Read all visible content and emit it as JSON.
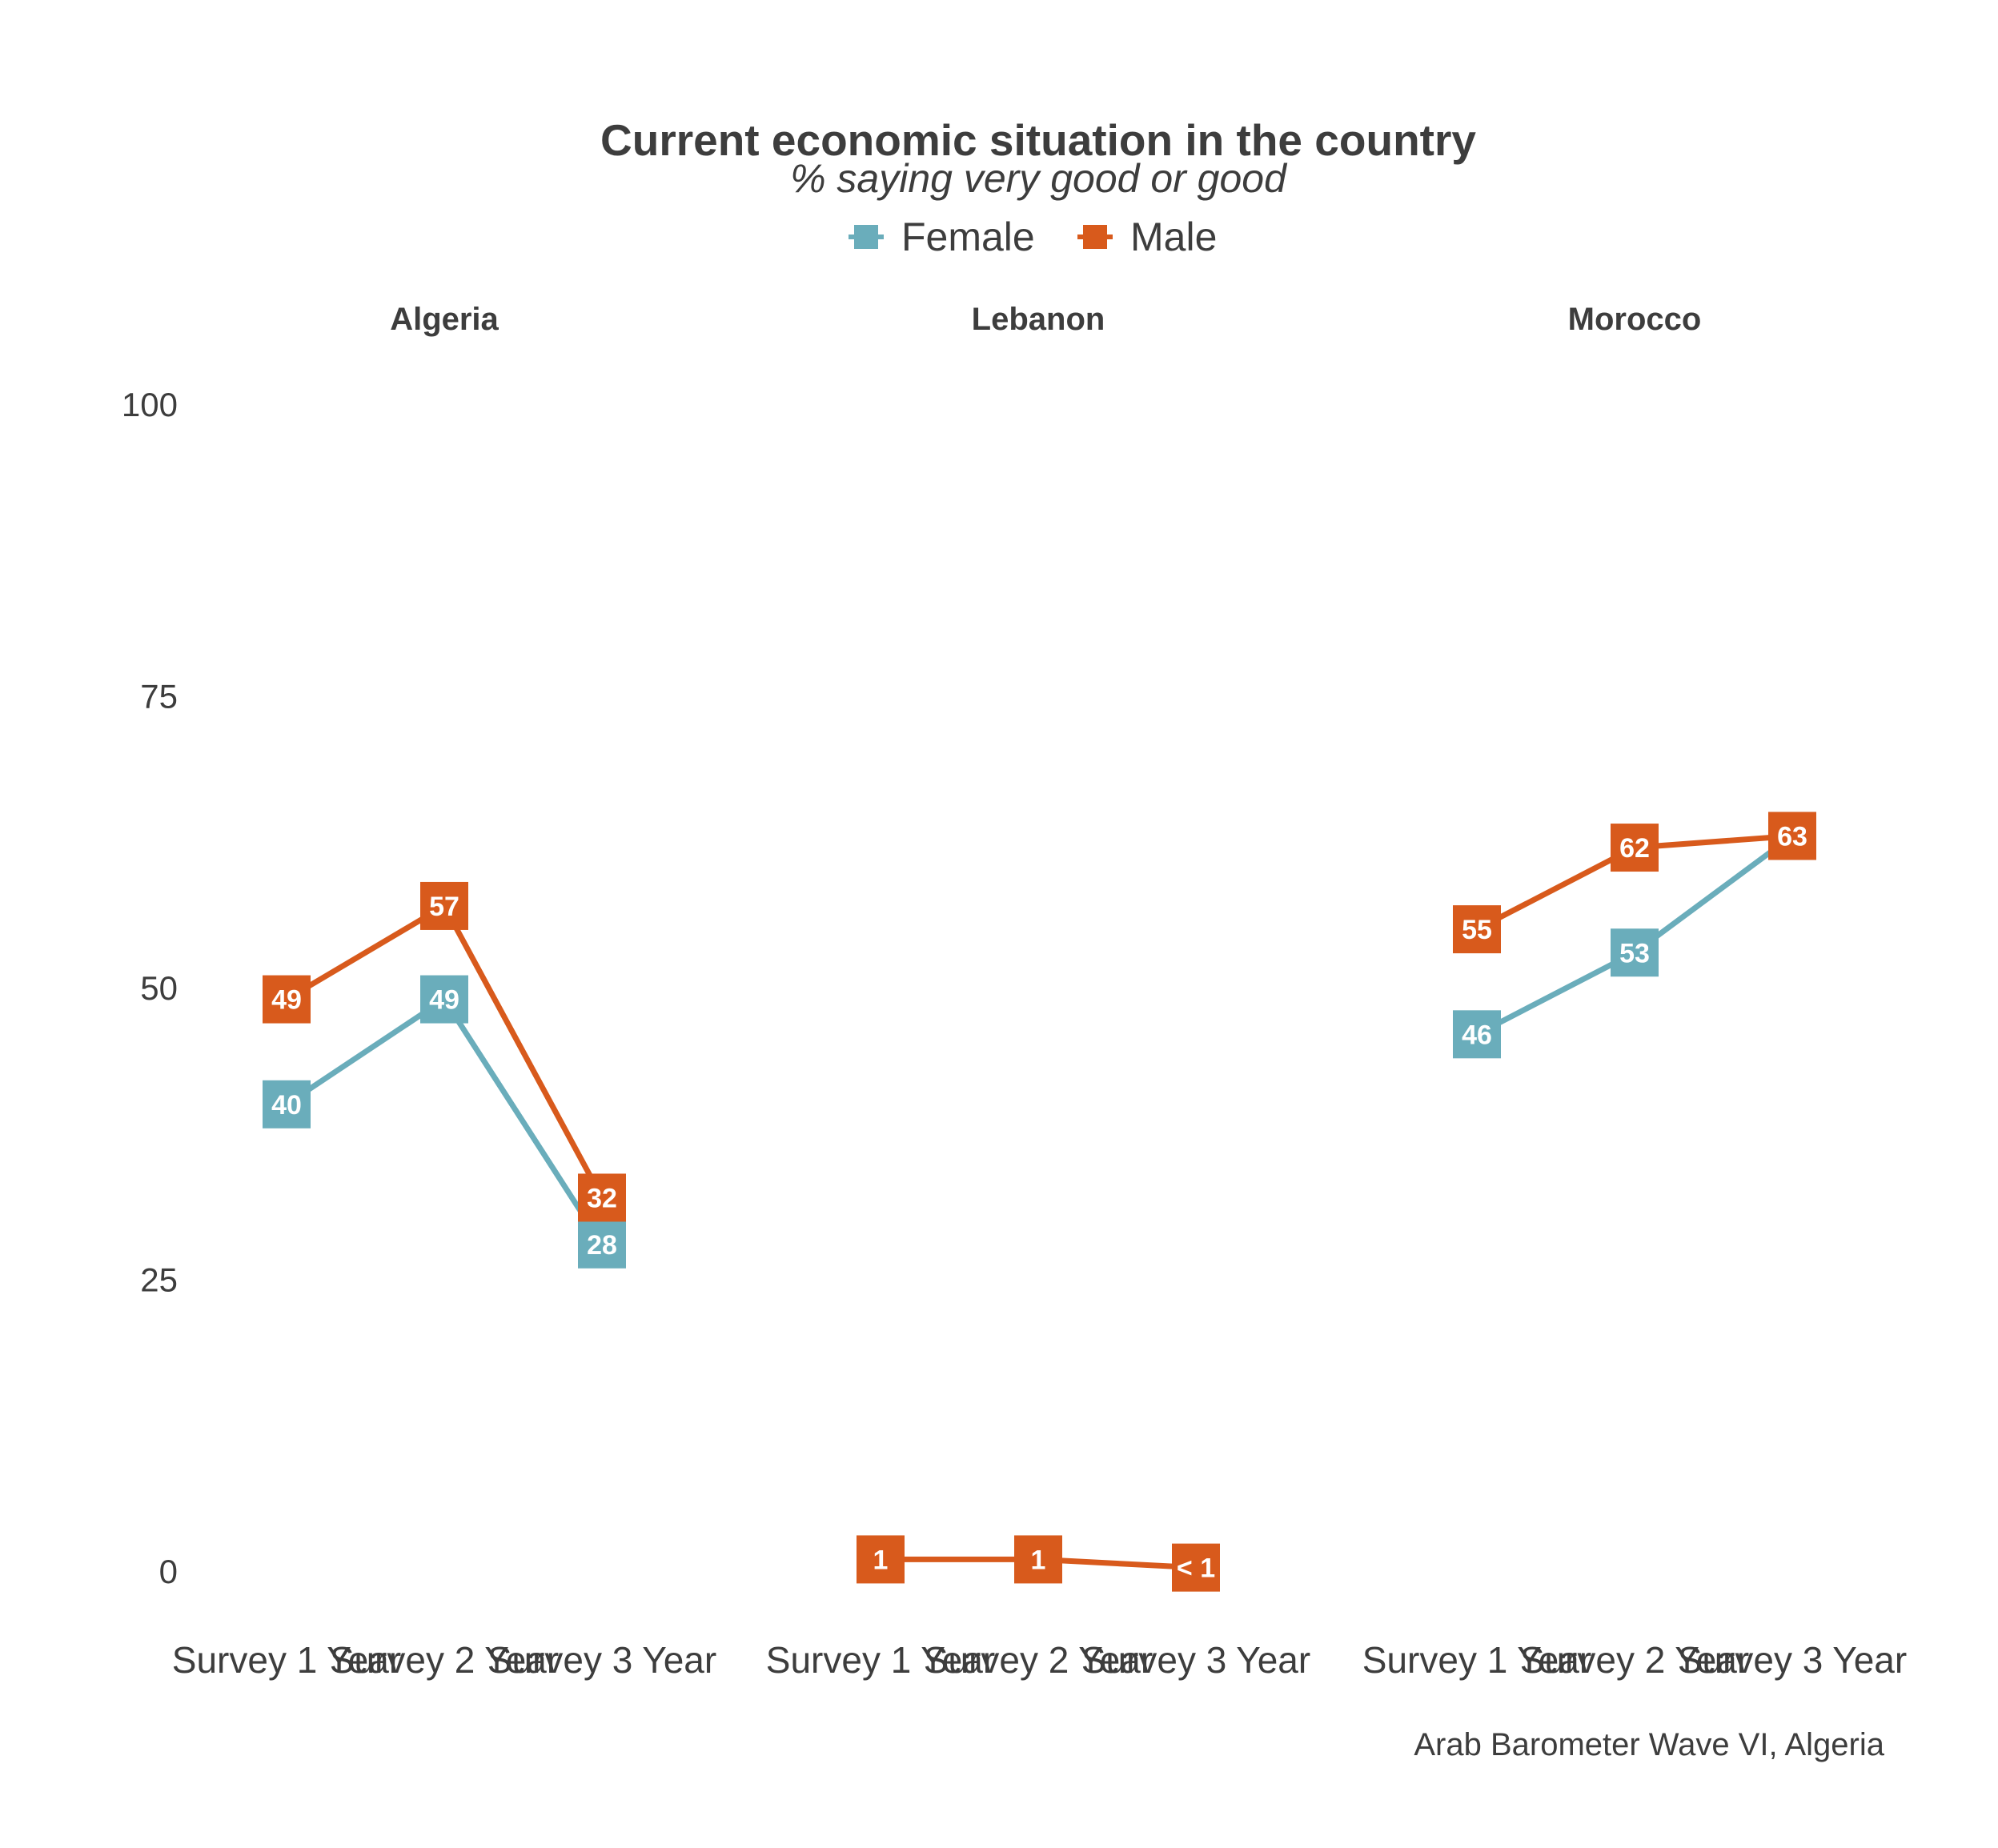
{
  "chart_data": {
    "type": "line",
    "title": "Current economic situation in the country",
    "subtitle": "% saying very good or good",
    "caption": "Arab Barometer Wave VI, Algeria",
    "ylim": [
      0,
      100
    ],
    "yticks": [
      0,
      25,
      50,
      75,
      100
    ],
    "categories": [
      "Survey 1 Year",
      "Survey 2 Year",
      "Survey 3 Year"
    ],
    "legend": {
      "position": "top",
      "entries": [
        {
          "name": "Female",
          "color": "#6aadbb"
        },
        {
          "name": "Male",
          "color": "#d85a1c"
        }
      ]
    },
    "colors": {
      "Female": "#6aadbb",
      "Male": "#d85a1c",
      "text": "#3d3d3d"
    },
    "grid": false,
    "panels": [
      {
        "name": "Algeria",
        "series": [
          {
            "name": "Female",
            "values": [
              40,
              49,
              28
            ],
            "labels": [
              "40",
              "49",
              "28"
            ]
          },
          {
            "name": "Male",
            "values": [
              49,
              57,
              32
            ],
            "labels": [
              "49",
              "57",
              "32"
            ]
          }
        ]
      },
      {
        "name": "Lebanon",
        "series": [
          {
            "name": "Male",
            "values": [
              1,
              1,
              0.3
            ],
            "labels": [
              "1",
              "1",
              "< 1"
            ]
          }
        ]
      },
      {
        "name": "Morocco",
        "series": [
          {
            "name": "Female",
            "values": [
              46,
              53,
              63
            ],
            "labels": [
              "46",
              "53",
              "63"
            ]
          },
          {
            "name": "Male",
            "values": [
              55,
              62,
              63
            ],
            "labels": [
              "55",
              "62",
              "63"
            ]
          }
        ]
      }
    ]
  }
}
